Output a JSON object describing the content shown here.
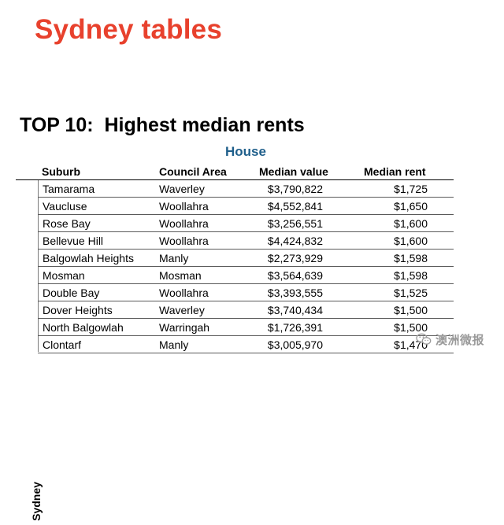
{
  "slide_title": "Sydney tables",
  "table_heading": "TOP 10:  Highest median rents",
  "section_label": "House",
  "region_label": "Sydney",
  "columns": {
    "suburb": "Suburb",
    "council": "Council Area",
    "value": "Median value",
    "rent": "Median rent"
  },
  "rows": [
    {
      "suburb": "Tamarama",
      "council": "Waverley",
      "value": "$3,790,822",
      "rent": "$1,725"
    },
    {
      "suburb": "Vaucluse",
      "council": "Woollahra",
      "value": "$4,552,841",
      "rent": "$1,650"
    },
    {
      "suburb": "Rose Bay",
      "council": "Woollahra",
      "value": "$3,256,551",
      "rent": "$1,600"
    },
    {
      "suburb": "Bellevue Hill",
      "council": "Woollahra",
      "value": "$4,424,832",
      "rent": "$1,600"
    },
    {
      "suburb": "Balgowlah Heights",
      "council": "Manly",
      "value": "$2,273,929",
      "rent": "$1,598"
    },
    {
      "suburb": "Mosman",
      "council": "Mosman",
      "value": "$3,564,639",
      "rent": "$1,598"
    },
    {
      "suburb": "Double Bay",
      "council": "Woollahra",
      "value": "$3,393,555",
      "rent": "$1,525"
    },
    {
      "suburb": "Dover Heights",
      "council": "Waverley",
      "value": "$3,740,434",
      "rent": "$1,500"
    },
    {
      "suburb": "North Balgowlah",
      "council": "Warringah",
      "value": "$1,726,391",
      "rent": "$1,500"
    },
    {
      "suburb": "Clontarf",
      "council": "Manly",
      "value": "$3,005,970",
      "rent": "$1,470"
    }
  ],
  "watermark": {
    "text": "澳洲微报",
    "icon": "wechat-icon"
  },
  "colors": {
    "title": "#e8412d",
    "section": "#1f5f8b"
  }
}
